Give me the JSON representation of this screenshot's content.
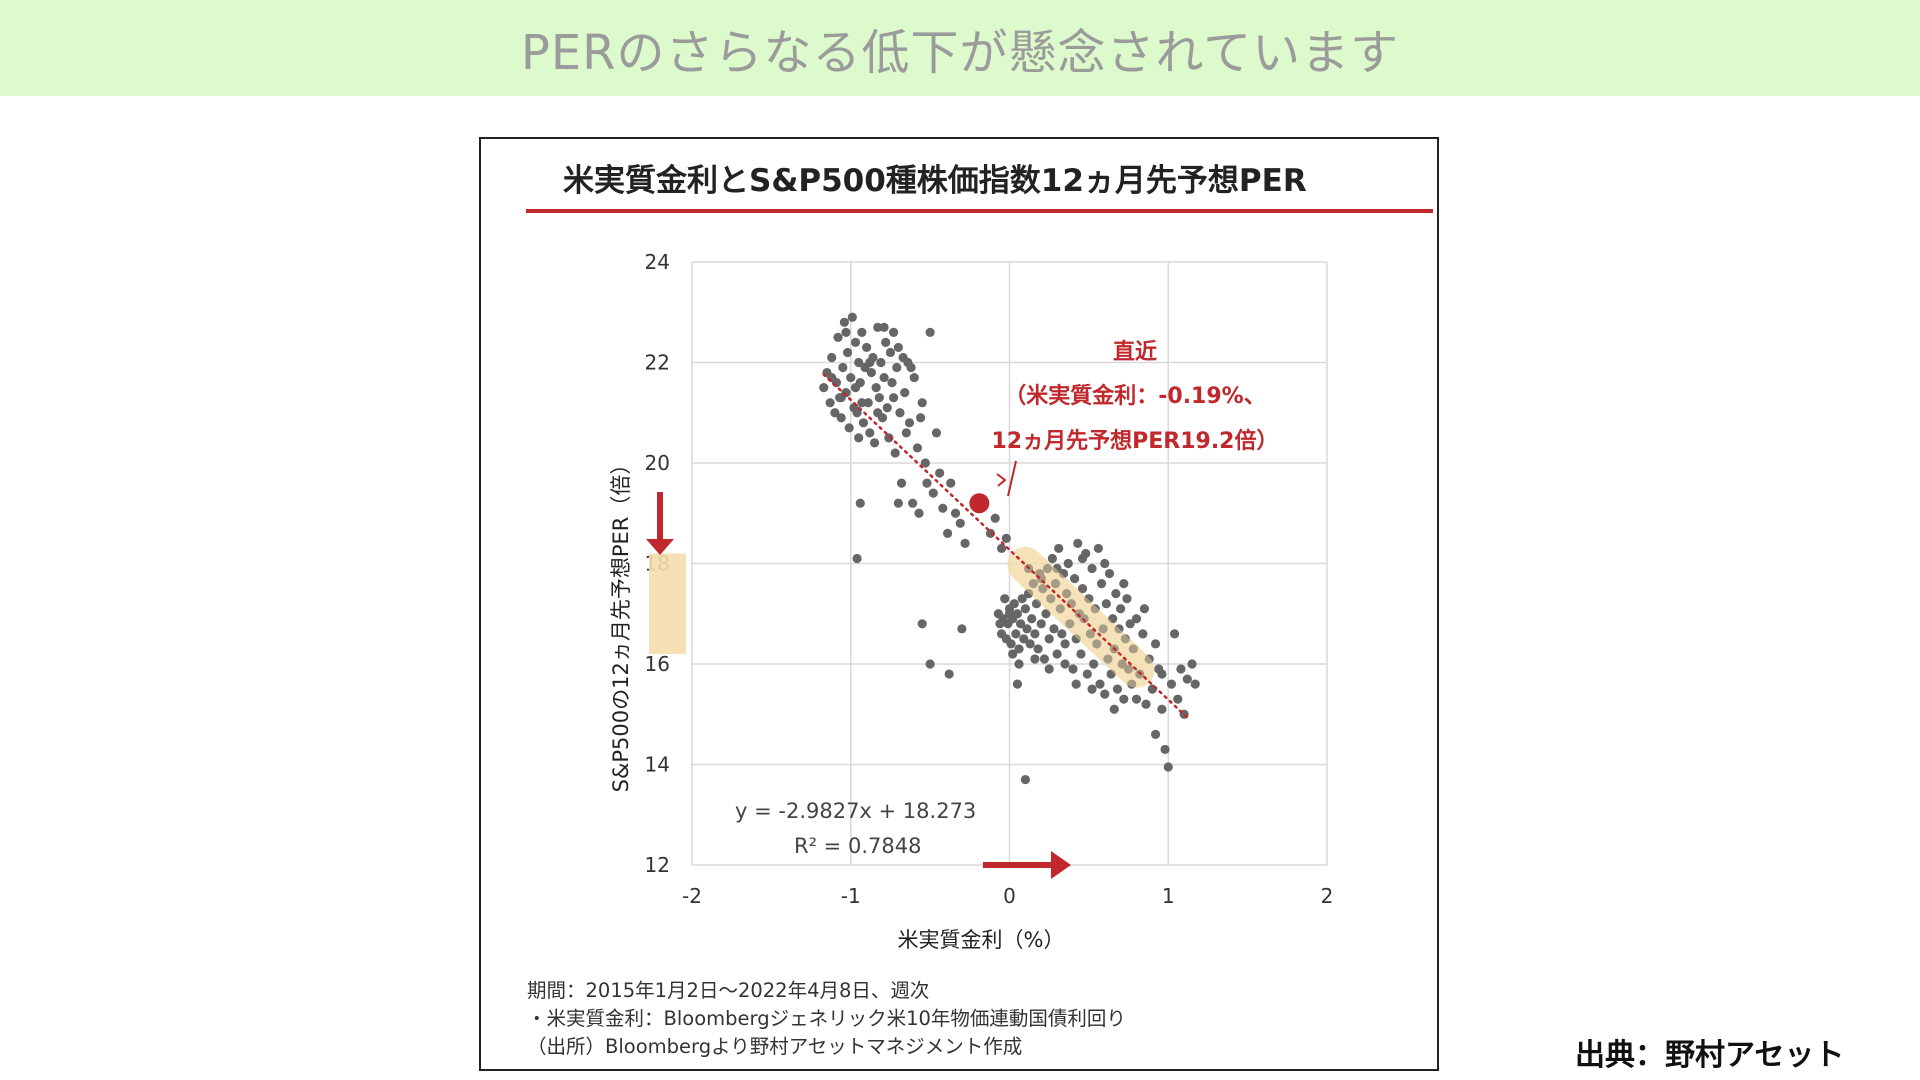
{
  "banner": {
    "title": "PERのさらなる低下が懸念されています"
  },
  "source_credit": "出典：野村アセット",
  "chart_data": {
    "type": "scatter",
    "title": "米実質金利とS&P500種株価指数12ヵ月先予想PER",
    "xlabel": "米実質金利（%）",
    "ylabel": "S&P500の12ヵ月先予想PER（倍）",
    "xlim": [
      -2,
      2
    ],
    "ylim": [
      12,
      24
    ],
    "xticks": [
      "-2",
      "-1",
      "0",
      "1",
      "2"
    ],
    "yticks": [
      "12",
      "14",
      "16",
      "18",
      "20",
      "22",
      "24"
    ],
    "grid": true,
    "trendline": {
      "slope": -2.9827,
      "intercept": 18.273,
      "equation": "y = -2.9827x + 18.273",
      "r2": "R² = 0.7848"
    },
    "latest": {
      "x": -0.19,
      "y": 19.2,
      "label_line1": "直近",
      "label_line2": "（米実質金利：-0.19%、",
      "label_line3": "12ヵ月先予想PER19.2倍）"
    },
    "highlight_band": {
      "x_from": 0.1,
      "x_to": 0.8
    },
    "y_highlight": {
      "from": 16.2,
      "to": 18.2
    },
    "colors": {
      "points": "#666666",
      "accent": "#c0282d",
      "band": "#f5deae",
      "grid": "#d9d9d9"
    },
    "points": [
      [
        -1.17,
        21.5
      ],
      [
        -1.15,
        21.8
      ],
      [
        -1.13,
        21.2
      ],
      [
        -1.12,
        22.1
      ],
      [
        -1.1,
        21.0
      ],
      [
        -1.09,
        21.6
      ],
      [
        -1.08,
        22.5
      ],
      [
        -1.07,
        21.3
      ],
      [
        -1.06,
        20.9
      ],
      [
        -1.05,
        21.9
      ],
      [
        -1.04,
        22.8
      ],
      [
        -1.03,
        21.4
      ],
      [
        -1.02,
        22.2
      ],
      [
        -1.01,
        20.7
      ],
      [
        -1.0,
        21.7
      ],
      [
        -0.99,
        22.9
      ],
      [
        -0.98,
        21.1
      ],
      [
        -0.97,
        22.4
      ],
      [
        -0.96,
        21.0
      ],
      [
        -0.95,
        22.0
      ],
      [
        -0.94,
        21.6
      ],
      [
        -0.93,
        22.6
      ],
      [
        -0.92,
        20.8
      ],
      [
        -0.91,
        21.9
      ],
      [
        -0.9,
        22.3
      ],
      [
        -0.89,
        21.2
      ],
      [
        -0.88,
        20.6
      ],
      [
        -0.87,
        21.8
      ],
      [
        -0.86,
        22.1
      ],
      [
        -0.85,
        20.4
      ],
      [
        -0.84,
        21.5
      ],
      [
        -0.83,
        22.7
      ],
      [
        -0.82,
        21.3
      ],
      [
        -0.81,
        22.0
      ],
      [
        -0.8,
        20.9
      ],
      [
        -0.79,
        21.7
      ],
      [
        -0.78,
        22.4
      ],
      [
        -0.77,
        21.1
      ],
      [
        -0.76,
        20.5
      ],
      [
        -0.75,
        22.2
      ],
      [
        -0.74,
        21.6
      ],
      [
        -0.73,
        22.6
      ],
      [
        -0.72,
        20.2
      ],
      [
        -0.71,
        21.9
      ],
      [
        -0.7,
        22.3
      ],
      [
        -0.69,
        21.0
      ],
      [
        -0.68,
        19.6
      ],
      [
        -0.66,
        21.4
      ],
      [
        -0.64,
        22.0
      ],
      [
        -0.63,
        20.8
      ],
      [
        -0.61,
        19.2
      ],
      [
        -0.6,
        21.7
      ],
      [
        -0.58,
        20.3
      ],
      [
        -0.57,
        19.0
      ],
      [
        -0.55,
        21.2
      ],
      [
        -0.53,
        20.0
      ],
      [
        -0.5,
        22.6
      ],
      [
        -0.48,
        19.4
      ],
      [
        -0.46,
        20.6
      ],
      [
        -0.44,
        19.8
      ],
      [
        -0.42,
        19.1
      ],
      [
        -0.39,
        18.6
      ],
      [
        -0.37,
        19.6
      ],
      [
        -0.34,
        19.0
      ],
      [
        -0.31,
        18.8
      ],
      [
        -0.28,
        18.4
      ],
      [
        -0.12,
        18.6
      ],
      [
        -0.09,
        18.9
      ],
      [
        -0.05,
        18.3
      ],
      [
        -0.02,
        18.5
      ],
      [
        -1.12,
        21.7
      ],
      [
        -1.06,
        21.3
      ],
      [
        -1.03,
        22.6
      ],
      [
        -0.97,
        21.5
      ],
      [
        -0.93,
        21.2
      ],
      [
        -0.88,
        22.0
      ],
      [
        -0.83,
        21.0
      ],
      [
        -0.79,
        22.7
      ],
      [
        -0.73,
        21.3
      ],
      [
        -0.67,
        22.1
      ],
      [
        -0.65,
        20.6
      ],
      [
        -0.62,
        21.9
      ],
      [
        -0.56,
        20.9
      ],
      [
        -0.52,
        19.6
      ],
      [
        -0.94,
        19.2
      ],
      [
        -0.7,
        19.2
      ],
      [
        -0.96,
        18.1
      ],
      [
        -0.5,
        16.0
      ],
      [
        -0.55,
        16.8
      ],
      [
        -0.38,
        15.8
      ],
      [
        -0.3,
        16.7
      ],
      [
        -0.95,
        20.5
      ],
      [
        -0.07,
        17.0
      ],
      [
        -0.05,
        16.6
      ],
      [
        -0.04,
        16.9
      ],
      [
        -0.03,
        17.3
      ],
      [
        -0.02,
        16.5
      ],
      [
        -0.01,
        16.8
      ],
      [
        0.0,
        17.1
      ],
      [
        0.01,
        16.4
      ],
      [
        0.02,
        16.9
      ],
      [
        0.03,
        17.2
      ],
      [
        0.04,
        16.6
      ],
      [
        0.05,
        17.0
      ],
      [
        0.06,
        16.3
      ],
      [
        0.07,
        16.8
      ],
      [
        0.08,
        17.3
      ],
      [
        0.09,
        16.5
      ],
      [
        0.1,
        17.1
      ],
      [
        0.11,
        16.7
      ],
      [
        0.12,
        17.4
      ],
      [
        0.13,
        16.4
      ],
      [
        0.14,
        16.9
      ],
      [
        0.15,
        17.6
      ],
      [
        0.16,
        16.6
      ],
      [
        0.17,
        17.2
      ],
      [
        0.18,
        16.3
      ],
      [
        0.19,
        17.8
      ],
      [
        0.2,
        16.8
      ],
      [
        0.21,
        17.5
      ],
      [
        0.22,
        16.1
      ],
      [
        0.23,
        17.0
      ],
      [
        0.24,
        17.9
      ],
      [
        0.25,
        16.5
      ],
      [
        0.26,
        17.3
      ],
      [
        0.27,
        18.1
      ],
      [
        0.28,
        16.7
      ],
      [
        0.29,
        17.6
      ],
      [
        0.3,
        16.2
      ],
      [
        0.31,
        18.3
      ],
      [
        0.32,
        17.1
      ],
      [
        0.33,
        16.6
      ],
      [
        0.34,
        17.8
      ],
      [
        0.35,
        16.4
      ],
      [
        0.36,
        17.4
      ],
      [
        0.37,
        18.0
      ],
      [
        0.38,
        16.8
      ],
      [
        0.39,
        17.2
      ],
      [
        0.4,
        15.9
      ],
      [
        0.41,
        17.7
      ],
      [
        0.42,
        16.5
      ],
      [
        0.43,
        18.4
      ],
      [
        0.44,
        17.0
      ],
      [
        0.45,
        16.2
      ],
      [
        0.46,
        17.5
      ],
      [
        0.47,
        16.9
      ],
      [
        0.48,
        18.2
      ],
      [
        0.49,
        15.8
      ],
      [
        0.5,
        17.3
      ],
      [
        0.51,
        16.6
      ],
      [
        0.52,
        17.9
      ],
      [
        0.53,
        16.0
      ],
      [
        0.54,
        17.1
      ],
      [
        0.55,
        16.4
      ],
      [
        0.56,
        18.3
      ],
      [
        0.57,
        15.6
      ],
      [
        0.58,
        17.6
      ],
      [
        0.59,
        16.7
      ],
      [
        0.6,
        15.4
      ],
      [
        0.61,
        17.2
      ],
      [
        0.62,
        16.1
      ],
      [
        0.63,
        17.8
      ],
      [
        0.64,
        15.8
      ],
      [
        0.65,
        16.9
      ],
      [
        0.66,
        16.3
      ],
      [
        0.67,
        17.4
      ],
      [
        0.68,
        15.5
      ],
      [
        0.69,
        16.7
      ],
      [
        0.7,
        17.1
      ],
      [
        0.71,
        16.0
      ],
      [
        0.72,
        15.3
      ],
      [
        0.73,
        16.5
      ],
      [
        0.74,
        17.3
      ],
      [
        0.75,
        15.9
      ],
      [
        0.76,
        16.8
      ],
      [
        0.77,
        15.6
      ],
      [
        0.78,
        16.3
      ],
      [
        0.8,
        16.9
      ],
      [
        0.82,
        15.8
      ],
      [
        0.84,
        16.6
      ],
      [
        0.86,
        15.2
      ],
      [
        0.88,
        16.1
      ],
      [
        0.9,
        15.5
      ],
      [
        0.92,
        14.6
      ],
      [
        0.94,
        15.9
      ],
      [
        0.96,
        15.1
      ],
      [
        0.98,
        14.3
      ],
      [
        1.0,
        13.95
      ],
      [
        1.02,
        15.6
      ],
      [
        1.04,
        16.6
      ],
      [
        1.06,
        15.3
      ],
      [
        1.08,
        15.9
      ],
      [
        1.1,
        15.0
      ],
      [
        1.12,
        15.7
      ],
      [
        1.15,
        16.0
      ],
      [
        1.17,
        15.6
      ],
      [
        0.1,
        13.7
      ],
      [
        0.05,
        15.6
      ],
      [
        -0.06,
        16.8
      ],
      [
        0.0,
        17.0
      ],
      [
        0.02,
        16.2
      ],
      [
        0.06,
        16.0
      ],
      [
        0.12,
        17.9
      ],
      [
        0.16,
        16.1
      ],
      [
        0.2,
        17.7
      ],
      [
        0.25,
        15.9
      ],
      [
        0.3,
        17.9
      ],
      [
        0.35,
        16.0
      ],
      [
        0.42,
        15.6
      ],
      [
        0.46,
        18.1
      ],
      [
        0.52,
        15.5
      ],
      [
        0.6,
        18.0
      ],
      [
        0.66,
        15.1
      ],
      [
        0.72,
        17.6
      ],
      [
        0.8,
        15.3
      ],
      [
        0.85,
        17.1
      ],
      [
        0.92,
        16.4
      ],
      [
        0.96,
        15.8
      ]
    ]
  }
}
